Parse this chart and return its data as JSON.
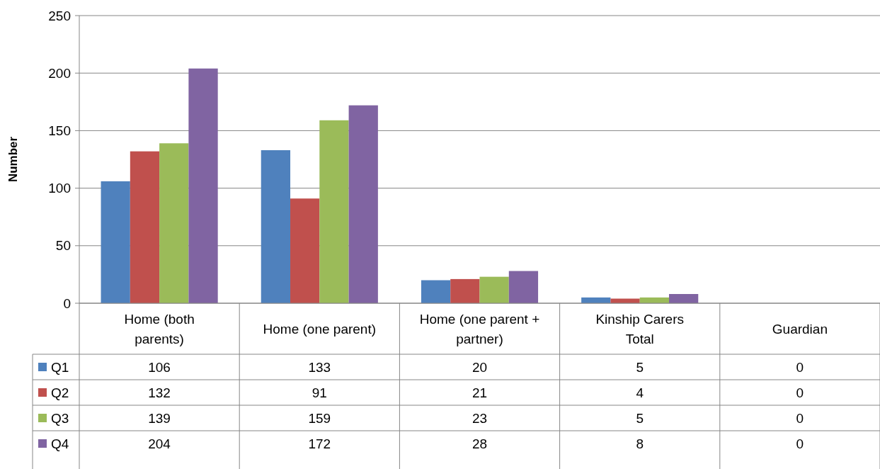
{
  "chart_data": {
    "type": "bar",
    "ylabel": "Number",
    "categories": [
      "Home (both parents)",
      "Home (one parent)",
      "Home (one parent + partner)",
      "Kinship Carers Total",
      "Guardian"
    ],
    "series": [
      {
        "name": "Q1",
        "color": "#4f81bd",
        "values": [
          106,
          133,
          20,
          5,
          0
        ]
      },
      {
        "name": "Q2",
        "color": "#c0504d",
        "values": [
          132,
          91,
          21,
          4,
          0
        ]
      },
      {
        "name": "Q3",
        "color": "#9bbb59",
        "values": [
          139,
          159,
          23,
          5,
          0
        ]
      },
      {
        "name": "Q4",
        "color": "#8064a2",
        "values": [
          204,
          172,
          28,
          8,
          0
        ]
      }
    ],
    "ylim": [
      0,
      250
    ],
    "yticks": [
      0,
      50,
      100,
      150,
      200,
      250
    ],
    "grid": "y",
    "legend": "bottom",
    "data_labels": true
  }
}
